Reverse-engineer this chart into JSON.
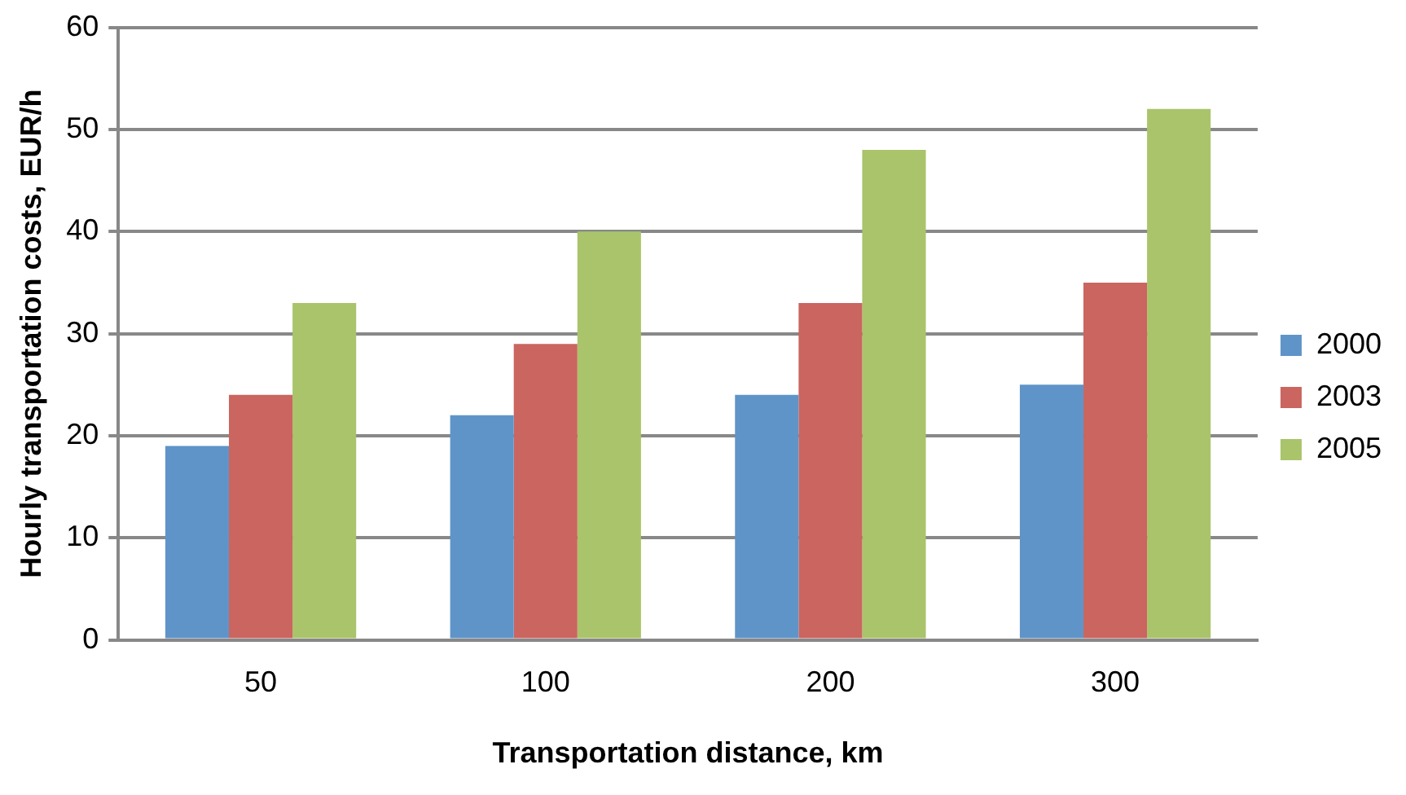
{
  "chart_data": {
    "type": "bar",
    "xlabel": "Transportation distance, km",
    "ylabel": "Hourly transportation costs, EUR/h",
    "categories": [
      "50",
      "100",
      "200",
      "300"
    ],
    "series": [
      {
        "name": "2000",
        "color": "#5f94c9",
        "values": [
          19,
          22,
          24,
          25
        ]
      },
      {
        "name": "2003",
        "color": "#ca655f",
        "values": [
          24,
          29,
          33,
          35
        ]
      },
      {
        "name": "2005",
        "color": "#a9c46a",
        "values": [
          33,
          40,
          48,
          52
        ]
      }
    ],
    "ylim": [
      0,
      60
    ],
    "yticks": [
      0,
      10,
      20,
      30,
      40,
      50,
      60
    ],
    "grid": "y",
    "legend": "right"
  }
}
